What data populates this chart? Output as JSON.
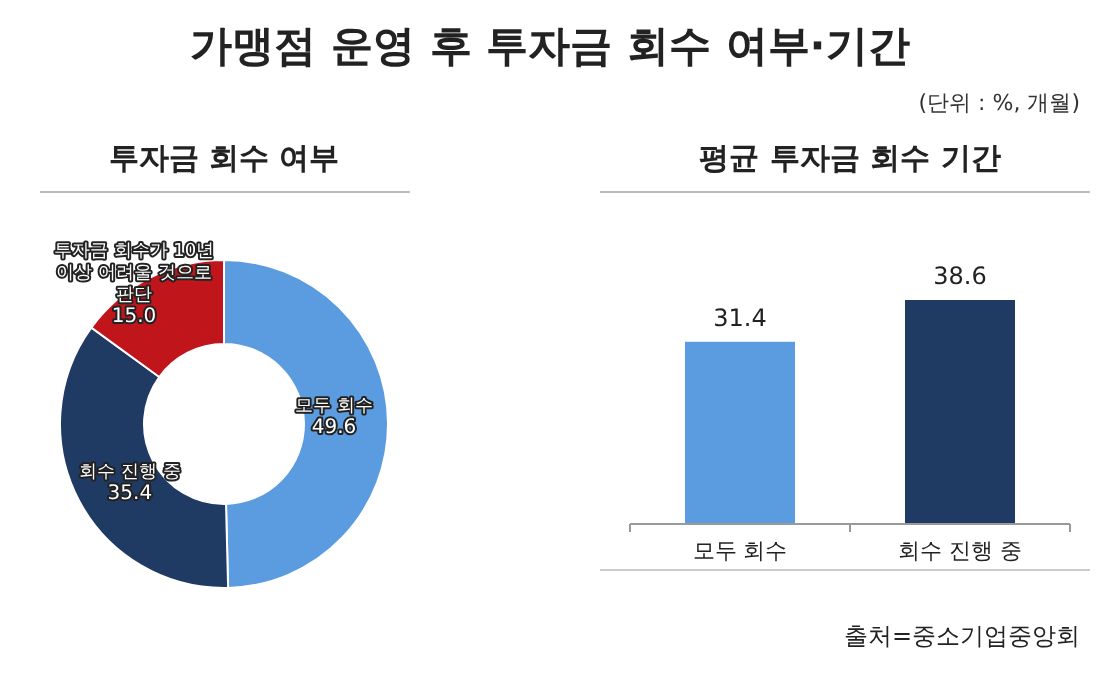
{
  "chart_data": [
    {
      "type": "donut",
      "title": "가맹점 운영 후 투자금 회수 여부·기간",
      "subtitle": "투자금 회수 여부",
      "categories": [
        "모두 회수",
        "회수 진행 중",
        "투자금 회수가 10년 이상 어려울 것으로 판단"
      ],
      "values": [
        49.6,
        35.4,
        15.0
      ],
      "value_labels": [
        "49.6",
        "35.4",
        "15.0"
      ],
      "colors": [
        "#5b9be0",
        "#1f3a63",
        "#c0151b"
      ],
      "annotations": [
        "(단위 : %, 개월)"
      ]
    },
    {
      "type": "bar",
      "title": "평균 투자금 회수 기간",
      "categories": [
        "모두 회수",
        "회수 진행 중"
      ],
      "values": [
        31.4,
        38.6
      ],
      "colors": [
        "#5b9be0",
        "#1f3a63"
      ],
      "data_labels": true,
      "annotations": [
        "출처=중소기업중앙회"
      ]
    }
  ]
}
